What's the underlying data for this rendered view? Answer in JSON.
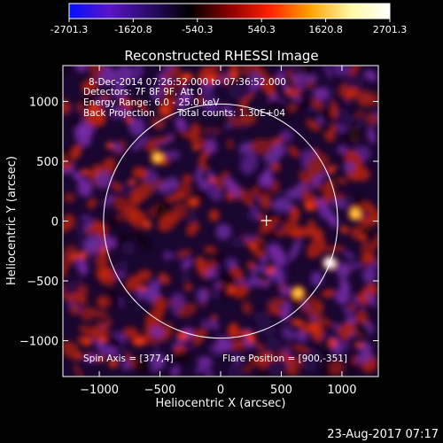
{
  "chart_data": {
    "type": "heatmap",
    "title": "Reconstructed RHESSI Image",
    "xlabel": "Heliocentric X (arcsec)",
    "ylabel": "Heliocentric Y (arcsec)",
    "xlim": [
      -1300,
      1300
    ],
    "ylim": [
      -1300,
      1300
    ],
    "x_ticks": [
      -1000,
      -500,
      0,
      500,
      1000
    ],
    "y_ticks": [
      -1000,
      -500,
      0,
      500,
      1000
    ],
    "colorbar": {
      "range": [
        -2701.3,
        2701.3
      ],
      "tick_values": [
        -2701.3,
        -1620.8,
        -540.3,
        540.3,
        1620.8,
        2701.3
      ],
      "tick_labels": [
        "-2701.3",
        "-1620.8",
        "-540.3",
        "540.3",
        "1620.8",
        "2701.3"
      ],
      "colors": [
        "#0010ff",
        "#5b14c8",
        "#2a0a6a",
        "#000000",
        "#8a0000",
        "#ff2000",
        "#ffa000",
        "#fff8a0",
        "#ffffff"
      ]
    },
    "annotations": {
      "date_range": "8-Dec-2014 07:26:52.000 to 07:36:52.000",
      "detectors": "Detectors: 7F 8F 9F, Att 0",
      "energy_range": "Energy Range: 6.0 - 25.0 keV",
      "method": "Back Projection",
      "total_counts": "Total counts: 1.30E+04",
      "spin_axis": "Spin Axis = [377,4]",
      "flare_position": "Flare Position = [900,-351]"
    },
    "solar_limb": {
      "center": [
        0,
        0
      ],
      "radius_arcsec": 965
    },
    "spin_axis_marker": [
      377,
      4
    ],
    "bright_sources": [
      {
        "x": 900,
        "y": -351,
        "intensity": 2701.3
      },
      {
        "x": 1110,
        "y": 60,
        "intensity": 1800
      },
      {
        "x": 640,
        "y": -600,
        "intensity": 1700
      },
      {
        "x": -520,
        "y": 530,
        "intensity": 1500
      }
    ]
  },
  "timestamp": "23-Aug-2017 07:17"
}
